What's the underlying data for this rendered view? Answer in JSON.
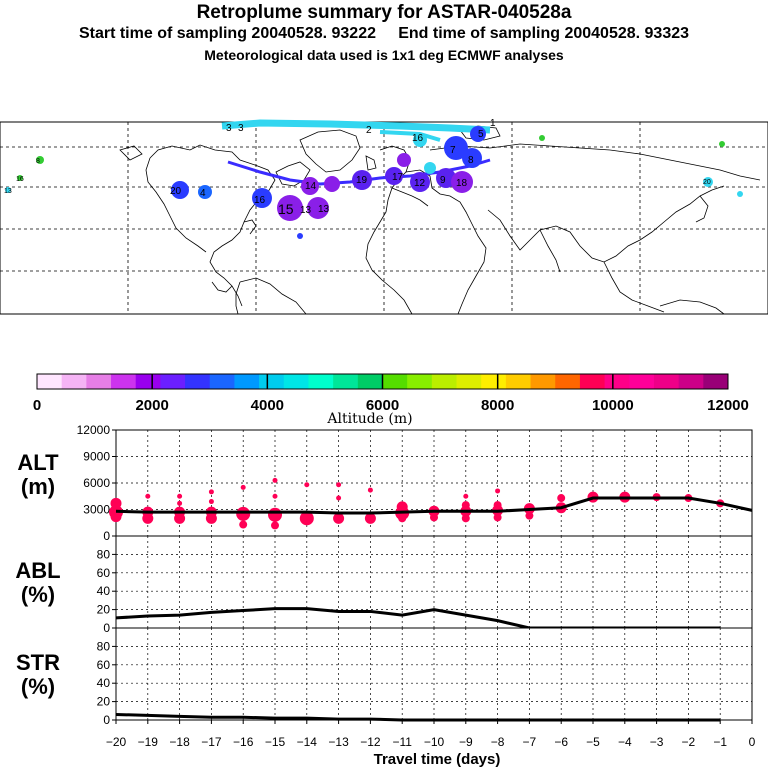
{
  "header": {
    "title": "Retroplume summary for ASTAR-040528a",
    "subtitle": "Start time of sampling 20040528. 93222     End time of sampling 20040528. 93323",
    "met_info": "Meteorological data used is 1x1 deg ECMWF analyses"
  },
  "colorbar": {
    "label": "Altitude (m)",
    "ticks": [
      "0",
      "2000",
      "4000",
      "6000",
      "8000",
      "10000",
      "12000"
    ],
    "colors": [
      "#ffe6ff",
      "#f5b4f5",
      "#e67ee6",
      "#cc33ee",
      "#9900ee",
      "#6b1fff",
      "#3333ff",
      "#1a66ff",
      "#0099ff",
      "#00ccee",
      "#00e6e6",
      "#00ffcc",
      "#00e699",
      "#00cc66",
      "#55dd00",
      "#88ee00",
      "#bbee00",
      "#ddee00",
      "#ffee00",
      "#ffcc00",
      "#ff9900",
      "#ff6600",
      "#ff0055",
      "#ff0088",
      "#ff0099",
      "#ee0088",
      "#cc0088",
      "#990077"
    ]
  },
  "map": {
    "labels": [
      "3",
      "3",
      "2",
      "1",
      "16",
      "5",
      "7",
      "8",
      "9",
      "17",
      "12",
      "18",
      "19",
      "20",
      "14",
      "16",
      "15",
      "13",
      "13",
      "4",
      "8",
      "16",
      "13",
      "20"
    ],
    "colors": {
      "purple": "#8a1fe8",
      "blue": "#2a3cff",
      "cyan": "#33d6f0",
      "green": "#33cc33"
    }
  },
  "chart_data": [
    {
      "type": "scatter",
      "panel": "ALT",
      "ylabel": "ALT\n(m)",
      "ylim": [
        0,
        12000
      ],
      "yticks": [
        0,
        3000,
        6000,
        9000,
        12000
      ],
      "ytick_labels": [
        "0",
        "3000",
        "6000",
        "9000",
        "12000"
      ],
      "xlim": [
        -20,
        0
      ],
      "line_x": [
        -20,
        -19,
        -18,
        -17,
        -16,
        -15,
        -14,
        -13,
        -12,
        -11,
        -10,
        -9,
        -8,
        -7,
        -6,
        -5,
        -4,
        -3,
        -2,
        -1,
        0
      ],
      "line_y": [
        2800,
        2700,
        2700,
        2700,
        2700,
        2700,
        2700,
        2600,
        2600,
        2700,
        2800,
        2800,
        2800,
        3000,
        3200,
        4300,
        4300,
        4300,
        4300,
        3700,
        2900
      ],
      "points": [
        {
          "x": -20,
          "y": 2700,
          "s": 4
        },
        {
          "x": -20,
          "y": 3700,
          "s": 3
        },
        {
          "x": -20,
          "y": 2200,
          "s": 3
        },
        {
          "x": -19,
          "y": 2700,
          "s": 3
        },
        {
          "x": -19,
          "y": 2000,
          "s": 3
        },
        {
          "x": -19,
          "y": 4500,
          "s": 1
        },
        {
          "x": -18,
          "y": 2700,
          "s": 3
        },
        {
          "x": -18,
          "y": 2000,
          "s": 3
        },
        {
          "x": -18,
          "y": 4500,
          "s": 1
        },
        {
          "x": -18,
          "y": 3700,
          "s": 1
        },
        {
          "x": -17,
          "y": 2700,
          "s": 3
        },
        {
          "x": -17,
          "y": 2000,
          "s": 3
        },
        {
          "x": -17,
          "y": 5000,
          "s": 1
        },
        {
          "x": -17,
          "y": 3900,
          "s": 1
        },
        {
          "x": -16,
          "y": 2500,
          "s": 4
        },
        {
          "x": -16,
          "y": 1300,
          "s": 2
        },
        {
          "x": -16,
          "y": 5500,
          "s": 1
        },
        {
          "x": -15,
          "y": 2400,
          "s": 4
        },
        {
          "x": -15,
          "y": 1200,
          "s": 2
        },
        {
          "x": -15,
          "y": 6300,
          "s": 1
        },
        {
          "x": -15,
          "y": 4500,
          "s": 1
        },
        {
          "x": -14,
          "y": 2000,
          "s": 4
        },
        {
          "x": -14,
          "y": 5800,
          "s": 1
        },
        {
          "x": -13,
          "y": 2000,
          "s": 3
        },
        {
          "x": -13,
          "y": 4300,
          "s": 1
        },
        {
          "x": -13,
          "y": 5800,
          "s": 1
        },
        {
          "x": -12,
          "y": 2000,
          "s": 3
        },
        {
          "x": -12,
          "y": 5200,
          "s": 1
        },
        {
          "x": -11,
          "y": 2600,
          "s": 4
        },
        {
          "x": -11,
          "y": 3300,
          "s": 3
        },
        {
          "x": -11,
          "y": 2000,
          "s": 2
        },
        {
          "x": -10,
          "y": 2800,
          "s": 3
        },
        {
          "x": -10,
          "y": 2100,
          "s": 2
        },
        {
          "x": -9,
          "y": 2800,
          "s": 3
        },
        {
          "x": -9,
          "y": 2000,
          "s": 2
        },
        {
          "x": -9,
          "y": 3500,
          "s": 2
        },
        {
          "x": -9,
          "y": 4500,
          "s": 1
        },
        {
          "x": -8,
          "y": 2900,
          "s": 3
        },
        {
          "x": -8,
          "y": 2100,
          "s": 2
        },
        {
          "x": -8,
          "y": 3500,
          "s": 2
        },
        {
          "x": -8,
          "y": 5100,
          "s": 1
        },
        {
          "x": -7,
          "y": 3100,
          "s": 3
        },
        {
          "x": -7,
          "y": 2300,
          "s": 2
        },
        {
          "x": -6,
          "y": 3200,
          "s": 3
        },
        {
          "x": -6,
          "y": 4300,
          "s": 2
        },
        {
          "x": -5,
          "y": 4400,
          "s": 3
        },
        {
          "x": -4,
          "y": 4400,
          "s": 3
        },
        {
          "x": -3,
          "y": 4400,
          "s": 2
        },
        {
          "x": -2,
          "y": 4300,
          "s": 2
        },
        {
          "x": -1,
          "y": 3700,
          "s": 2
        }
      ]
    },
    {
      "type": "line",
      "panel": "ABL",
      "ylabel": "ABL\n(%)",
      "ylim": [
        0,
        100
      ],
      "yticks": [
        0,
        20,
        40,
        60,
        80
      ],
      "ytick_labels": [
        "0",
        "20",
        "40",
        "60",
        "80"
      ],
      "xlim": [
        -20,
        0
      ],
      "x": [
        -20,
        -19,
        -18,
        -17,
        -16,
        -15,
        -14,
        -13,
        -12,
        -11,
        -10,
        -9,
        -8,
        -7,
        -6,
        -5,
        -4,
        -3,
        -2,
        -1
      ],
      "y": [
        11,
        13,
        14,
        17,
        19,
        21,
        21,
        18,
        18,
        14,
        20,
        14,
        8,
        0,
        0,
        0,
        0,
        0,
        0,
        0
      ]
    },
    {
      "type": "line",
      "panel": "STR",
      "ylabel": "STR\n(%)",
      "ylim": [
        0,
        100
      ],
      "yticks": [
        0,
        20,
        40,
        60,
        80
      ],
      "ytick_labels": [
        "0",
        "20",
        "40",
        "60",
        "80"
      ],
      "xlim": [
        -20,
        0
      ],
      "x": [
        -20,
        -19,
        -18,
        -17,
        -16,
        -15,
        -14,
        -13,
        -12,
        -11,
        -10,
        -9,
        -8,
        -7,
        -6,
        -5,
        -4,
        -3,
        -2,
        -1
      ],
      "y": [
        6,
        5,
        4,
        3,
        3,
        2,
        2,
        1,
        1,
        0,
        0,
        0,
        0,
        0,
        0,
        0,
        0,
        0,
        0,
        0
      ]
    }
  ],
  "xaxis": {
    "xlabel": "Travel time (days)",
    "tick_labels": [
      "−20",
      "−19",
      "−18",
      "−17",
      "−16",
      "−15",
      "−14",
      "−13",
      "−12",
      "−11",
      "−10",
      "−9",
      "−8",
      "−7",
      "−6",
      "−5",
      "−4",
      "−3",
      "−2",
      "−1",
      "0"
    ]
  }
}
